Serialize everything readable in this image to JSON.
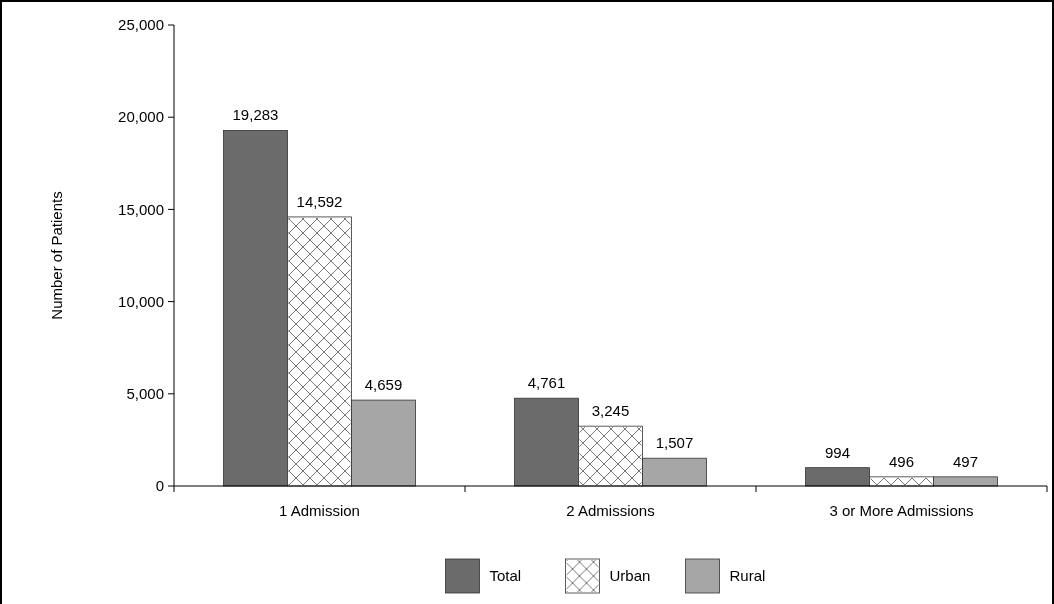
{
  "chart_data": {
    "type": "bar",
    "ylabel": "Number of Patients",
    "categories": [
      "1 Admission",
      "2 Admissions",
      "3 or More Admissions"
    ],
    "series": [
      {
        "name": "Total",
        "color": "#6b6b6b",
        "values": [
          19283,
          4761,
          994
        ],
        "value_labels": [
          "19,283",
          "4,761",
          "994"
        ]
      },
      {
        "name": "Urban",
        "color": "#ffffff",
        "values": [
          14592,
          3245,
          496
        ],
        "value_labels": [
          "14,592",
          "3,245",
          "496"
        ]
      },
      {
        "name": "Rural",
        "color": "#a6a6a6",
        "values": [
          4659,
          1507,
          497
        ],
        "value_labels": [
          "4,659",
          "1,507",
          "497"
        ]
      }
    ],
    "ylim": [
      0,
      25000
    ],
    "yticks": [
      {
        "value": 0,
        "label": "0"
      },
      {
        "value": 5000,
        "label": "5,000"
      },
      {
        "value": 10000,
        "label": "10,000"
      },
      {
        "value": 15000,
        "label": "15,000"
      },
      {
        "value": 20000,
        "label": "20,000"
      },
      {
        "value": 25000,
        "label": "25,000"
      }
    ],
    "grid": false,
    "legend": "bottom"
  }
}
